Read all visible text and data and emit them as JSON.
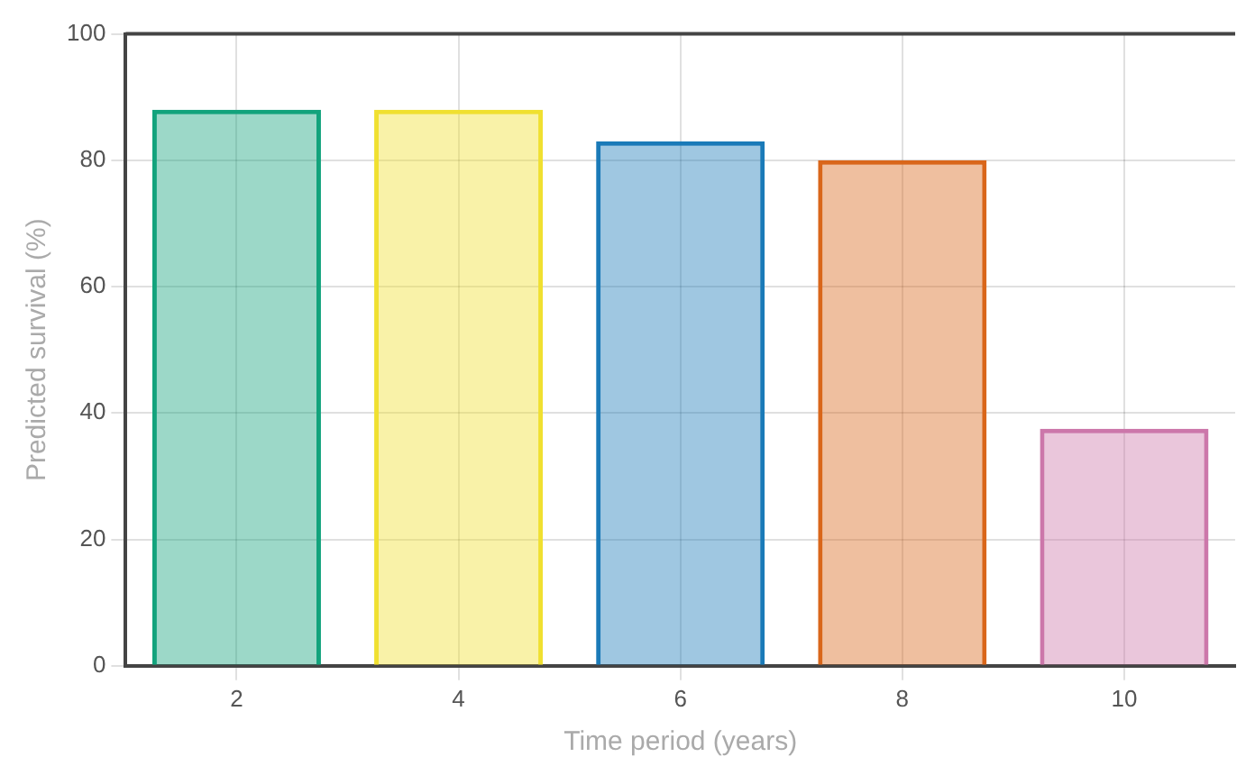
{
  "chart_data": {
    "type": "bar",
    "xlabel": "Time period (years)",
    "ylabel": "Predicted survival (%)",
    "categories": [
      "2",
      "4",
      "6",
      "8",
      "10"
    ],
    "values": [
      88,
      88,
      83,
      80,
      37.5
    ],
    "colors": [
      "#12a37c",
      "#f0e030",
      "#1a7ab8",
      "#d9661a",
      "#cc77aa"
    ],
    "ylim": [
      0,
      100
    ],
    "yticks": [
      0,
      20,
      40,
      60,
      80,
      100
    ],
    "grid": true,
    "legend": false
  }
}
